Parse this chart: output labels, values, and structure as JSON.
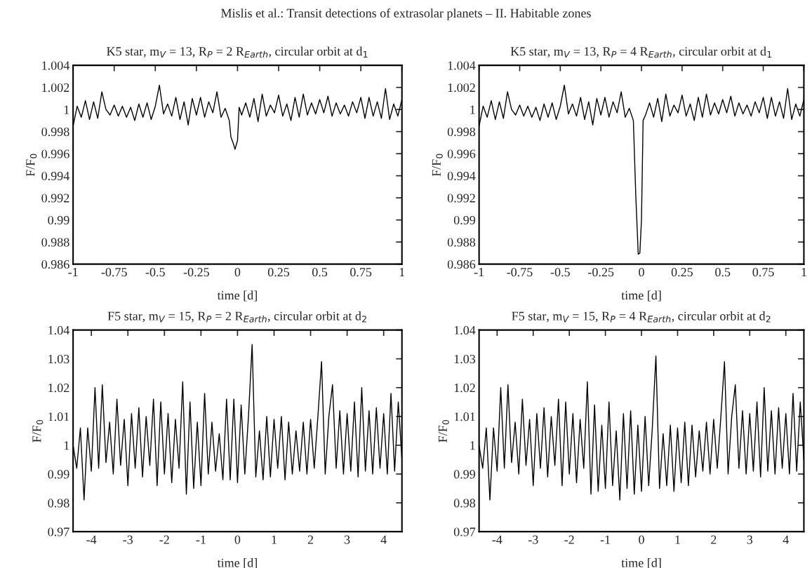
{
  "chart_data": [
    {
      "type": "line",
      "title": "K5 star, m$_{V}$ = 13, R$_{P}$ = 2 R$_{Earth}$, circular orbit at d$_{1}$",
      "xlabel": "time [d]",
      "ylabel": "F/F$_{0}$",
      "annotations": [
        "Mislis et al.: Transit detections of extrasolar planets – II. Habitable zones"
      ],
      "x": [
        -1,
        -0.975,
        -0.95,
        -0.925,
        -0.9,
        -0.875,
        -0.85,
        -0.825,
        -0.8,
        -0.775,
        -0.75,
        -0.725,
        -0.7,
        -0.675,
        -0.65,
        -0.625,
        -0.6,
        -0.575,
        -0.55,
        -0.525,
        -0.5,
        -0.475,
        -0.45,
        -0.425,
        -0.4,
        -0.375,
        -0.35,
        -0.325,
        -0.3,
        -0.275,
        -0.25,
        -0.225,
        -0.2,
        -0.175,
        -0.15,
        -0.125,
        -0.1,
        -0.075,
        -0.05,
        -0.04,
        -0.025,
        -0.015,
        0.0,
        0.01,
        0.025,
        0.05,
        0.075,
        0.1,
        0.125,
        0.15,
        0.175,
        0.2,
        0.225,
        0.25,
        0.275,
        0.3,
        0.325,
        0.35,
        0.375,
        0.4,
        0.425,
        0.45,
        0.475,
        0.5,
        0.525,
        0.55,
        0.575,
        0.6,
        0.625,
        0.65,
        0.675,
        0.7,
        0.725,
        0.75,
        0.775,
        0.8,
        0.825,
        0.85,
        0.875,
        0.9,
        0.925,
        0.95,
        0.975,
        1.0
      ],
      "series": [
        {
          "color": "#000000",
          "values": [
            0.9985,
            1.0003,
            0.9993,
            1.0008,
            0.9991,
            1.0007,
            0.9992,
            1.0016,
            1.0,
            0.9995,
            1.0004,
            0.9994,
            1.0003,
            0.9993,
            1.0002,
            0.999,
            1.0005,
            0.9993,
            1.0006,
            0.9991,
            1.0003,
            1.0022,
            0.9996,
            1.0005,
            0.9994,
            1.0011,
            0.9991,
            1.0007,
            0.9986,
            1.001,
            0.9995,
            1.0011,
            0.9993,
            1.0007,
            0.9997,
            1.0016,
            0.9993,
            1.0001,
            0.999,
            0.9975,
            0.9969,
            0.9964,
            0.9972,
            1.0002,
            0.9995,
            1.0006,
            0.9993,
            1.001,
            0.9989,
            1.0014,
            0.9994,
            1.0004,
            0.9997,
            1.0013,
            0.9994,
            1.0005,
            0.999,
            1.0011,
            0.9993,
            1.0014,
            0.9995,
            1.0006,
            0.9996,
            1.0009,
            0.9997,
            1.0012,
            0.9994,
            1.0006,
            0.9996,
            1.0004,
            0.9994,
            1.0007,
            0.9997,
            1.0011,
            0.9992,
            1.0011,
            0.9994,
            1.0007,
            0.9992,
            1.0019,
            0.9991,
            1.0005,
            0.9994,
            1.0009
          ]
        }
      ],
      "xlim": [
        -1,
        1
      ],
      "ylim": [
        0.986,
        1.004
      ],
      "xticks": [
        -1,
        -0.75,
        -0.5,
        -0.25,
        0,
        0.25,
        0.5,
        0.75,
        1
      ],
      "yticks": [
        0.986,
        0.988,
        0.99,
        0.992,
        0.994,
        0.996,
        0.998,
        1,
        1.002,
        1.004
      ],
      "grid": false,
      "legend": false
    },
    {
      "type": "line",
      "title": "K5 star, m$_{V}$ = 13, R$_{P}$ = 4 R$_{Earth}$, circular orbit at d$_{1}$",
      "xlabel": "time [d]",
      "ylabel": "F/F$_{0}$",
      "x": [
        -1,
        -0.975,
        -0.95,
        -0.925,
        -0.9,
        -0.875,
        -0.85,
        -0.825,
        -0.8,
        -0.775,
        -0.75,
        -0.725,
        -0.7,
        -0.675,
        -0.65,
        -0.625,
        -0.6,
        -0.575,
        -0.55,
        -0.525,
        -0.5,
        -0.475,
        -0.45,
        -0.425,
        -0.4,
        -0.375,
        -0.35,
        -0.325,
        -0.3,
        -0.275,
        -0.25,
        -0.225,
        -0.2,
        -0.175,
        -0.15,
        -0.125,
        -0.1,
        -0.075,
        -0.05,
        -0.035,
        -0.02,
        -0.01,
        0.0,
        0.01,
        0.025,
        0.05,
        0.075,
        0.1,
        0.125,
        0.15,
        0.175,
        0.2,
        0.225,
        0.25,
        0.275,
        0.3,
        0.325,
        0.35,
        0.375,
        0.4,
        0.425,
        0.45,
        0.475,
        0.5,
        0.525,
        0.55,
        0.575,
        0.6,
        0.625,
        0.65,
        0.675,
        0.7,
        0.725,
        0.75,
        0.775,
        0.8,
        0.825,
        0.85,
        0.875,
        0.9,
        0.925,
        0.95,
        0.975,
        1.0
      ],
      "series": [
        {
          "color": "#000000",
          "values": [
            0.9985,
            1.0003,
            0.9993,
            1.0008,
            0.9991,
            1.0007,
            0.9992,
            1.0016,
            1.0,
            0.9995,
            1.0004,
            0.9994,
            1.0003,
            0.9993,
            1.0002,
            0.999,
            1.0005,
            0.9993,
            1.0006,
            0.9991,
            1.0003,
            1.0022,
            0.9996,
            1.0005,
            0.9994,
            1.0011,
            0.9991,
            1.0007,
            0.9986,
            1.001,
            0.9995,
            1.0011,
            0.9993,
            1.0007,
            0.9997,
            1.0016,
            0.9993,
            1.0001,
            0.999,
            0.9922,
            0.9869,
            0.987,
            0.99,
            0.999,
            0.9995,
            1.0006,
            0.9993,
            1.001,
            0.9989,
            1.0014,
            0.9994,
            1.0004,
            0.9997,
            1.0013,
            0.9994,
            1.0005,
            0.999,
            1.0011,
            0.9993,
            1.0014,
            0.9995,
            1.0006,
            0.9996,
            1.0009,
            0.9997,
            1.0012,
            0.9994,
            1.0006,
            0.9996,
            1.0004,
            0.9994,
            1.0007,
            0.9997,
            1.0011,
            0.9992,
            1.0011,
            0.9994,
            1.0007,
            0.9992,
            1.0019,
            0.9991,
            1.0005,
            0.9994,
            1.0009
          ]
        }
      ],
      "xlim": [
        -1,
        1
      ],
      "ylim": [
        0.986,
        1.004
      ],
      "xticks": [
        -1,
        -0.75,
        -0.5,
        -0.25,
        0,
        0.25,
        0.5,
        0.75,
        1
      ],
      "yticks": [
        0.986,
        0.988,
        0.99,
        0.992,
        0.994,
        0.996,
        0.998,
        1,
        1.002,
        1.004
      ],
      "grid": false,
      "legend": false
    },
    {
      "type": "line",
      "title": "F5 star, m$_{V}$ = 15, R$_{P}$ = 2 R$_{Earth}$, circular orbit at d$_{2}$",
      "xlabel": "time [d]",
      "ylabel": "F/F$_{0}$",
      "x": [
        -4.5,
        -4.4,
        -4.3,
        -4.2,
        -4.1,
        -4.0,
        -3.9,
        -3.8,
        -3.7,
        -3.6,
        -3.5,
        -3.4,
        -3.3,
        -3.2,
        -3.1,
        -3.0,
        -2.9,
        -2.8,
        -2.7,
        -2.6,
        -2.5,
        -2.4,
        -2.3,
        -2.2,
        -2.1,
        -2.0,
        -1.9,
        -1.8,
        -1.7,
        -1.6,
        -1.5,
        -1.4,
        -1.3,
        -1.2,
        -1.1,
        -1.0,
        -0.9,
        -0.8,
        -0.7,
        -0.6,
        -0.5,
        -0.4,
        -0.3,
        -0.2,
        -0.1,
        0.0,
        0.1,
        0.2,
        0.3,
        0.4,
        0.5,
        0.6,
        0.7,
        0.8,
        0.9,
        1.0,
        1.1,
        1.2,
        1.3,
        1.4,
        1.5,
        1.6,
        1.7,
        1.8,
        1.9,
        2.0,
        2.1,
        2.2,
        2.3,
        2.4,
        2.5,
        2.6,
        2.7,
        2.8,
        2.9,
        3.0,
        3.1,
        3.2,
        3.3,
        3.4,
        3.5,
        3.6,
        3.7,
        3.8,
        3.9,
        4.0,
        4.1,
        4.2,
        4.3,
        4.4,
        4.5
      ],
      "series": [
        {
          "color": "#000000",
          "values": [
            1.0,
            0.992,
            1.006,
            0.981,
            1.006,
            0.991,
            1.02,
            0.992,
            1.021,
            0.994,
            1.008,
            0.99,
            1.016,
            0.993,
            1.009,
            0.986,
            1.011,
            0.992,
            1.013,
            0.989,
            1.01,
            0.993,
            1.016,
            0.986,
            1.015,
            0.99,
            1.011,
            0.987,
            1.009,
            0.992,
            1.022,
            0.983,
            1.015,
            0.985,
            1.008,
            0.986,
            1.018,
            0.99,
            1.008,
            0.991,
            1.004,
            0.988,
            1.016,
            0.988,
            1.016,
            0.987,
            1.014,
            0.99,
            1.01,
            1.035,
            0.989,
            1.005,
            0.988,
            1.01,
            0.989,
            1.009,
            0.992,
            1.01,
            0.988,
            1.008,
            0.99,
            1.005,
            0.991,
            1.008,
            0.99,
            1.009,
            0.992,
            1.01,
            1.029,
            0.99,
            1.01,
            1.021,
            0.992,
            1.012,
            0.99,
            1.011,
            0.991,
            1.015,
            0.989,
            1.02,
            0.991,
            1.012,
            0.99,
            1.013,
            0.992,
            1.011,
            0.99,
            1.018,
            0.991,
            1.015,
            0.995
          ]
        }
      ],
      "xlim": [
        -4.5,
        4.5
      ],
      "ylim": [
        0.97,
        1.04
      ],
      "xticks": [
        -4,
        -3,
        -2,
        -1,
        0,
        1,
        2,
        3,
        4
      ],
      "yticks": [
        0.97,
        0.98,
        0.99,
        1,
        1.01,
        1.02,
        1.03,
        1.04
      ],
      "grid": false,
      "legend": false
    },
    {
      "type": "line",
      "title": "F5 star, m$_{V}$ = 15, R$_{P}$ = 4 R$_{Earth}$, circular orbit at d$_{2}$",
      "xlabel": "time [d]",
      "ylabel": "F/F$_{0}$",
      "x": [
        -4.5,
        -4.4,
        -4.3,
        -4.2,
        -4.1,
        -4.0,
        -3.9,
        -3.8,
        -3.7,
        -3.6,
        -3.5,
        -3.4,
        -3.3,
        -3.2,
        -3.1,
        -3.0,
        -2.9,
        -2.8,
        -2.7,
        -2.6,
        -2.5,
        -2.4,
        -2.3,
        -2.2,
        -2.1,
        -2.0,
        -1.9,
        -1.8,
        -1.7,
        -1.6,
        -1.5,
        -1.4,
        -1.3,
        -1.2,
        -1.1,
        -1.0,
        -0.9,
        -0.8,
        -0.7,
        -0.6,
        -0.5,
        -0.4,
        -0.3,
        -0.2,
        -0.1,
        0.0,
        0.1,
        0.2,
        0.3,
        0.4,
        0.5,
        0.6,
        0.7,
        0.8,
        0.9,
        1.0,
        1.1,
        1.2,
        1.3,
        1.4,
        1.5,
        1.6,
        1.7,
        1.8,
        1.9,
        2.0,
        2.1,
        2.2,
        2.3,
        2.4,
        2.5,
        2.6,
        2.7,
        2.8,
        2.9,
        3.0,
        3.1,
        3.2,
        3.3,
        3.4,
        3.5,
        3.6,
        3.7,
        3.8,
        3.9,
        4.0,
        4.1,
        4.2,
        4.3,
        4.4,
        4.5
      ],
      "series": [
        {
          "color": "#000000",
          "values": [
            1.0,
            0.992,
            1.006,
            0.981,
            1.006,
            0.991,
            1.02,
            0.992,
            1.021,
            0.994,
            1.008,
            0.99,
            1.016,
            0.993,
            1.009,
            0.986,
            1.011,
            0.992,
            1.013,
            0.989,
            1.01,
            0.993,
            1.016,
            0.986,
            1.015,
            0.99,
            1.011,
            0.987,
            1.009,
            0.992,
            1.022,
            0.983,
            1.014,
            0.984,
            1.007,
            0.985,
            1.015,
            0.986,
            1.005,
            0.981,
            1.011,
            0.985,
            1.012,
            0.983,
            1.007,
            0.984,
            1.01,
            0.986,
            1.006,
            1.031,
            0.985,
            1.004,
            0.986,
            1.007,
            0.984,
            1.006,
            0.987,
            1.008,
            0.986,
            1.007,
            0.989,
            1.005,
            0.991,
            1.008,
            0.99,
            1.009,
            0.992,
            1.01,
            1.029,
            0.99,
            1.01,
            1.021,
            0.992,
            1.012,
            0.99,
            1.011,
            0.991,
            1.015,
            0.989,
            1.02,
            0.991,
            1.012,
            0.99,
            1.013,
            0.992,
            1.011,
            0.99,
            1.018,
            0.991,
            1.015,
            0.995
          ]
        }
      ],
      "xlim": [
        -4.5,
        4.5
      ],
      "ylim": [
        0.97,
        1.04
      ],
      "xticks": [
        -4,
        -3,
        -2,
        -1,
        0,
        1,
        2,
        3,
        4
      ],
      "yticks": [
        0.97,
        0.98,
        0.99,
        1,
        1.01,
        1.02,
        1.03,
        1.04
      ],
      "grid": false,
      "legend": false
    }
  ]
}
